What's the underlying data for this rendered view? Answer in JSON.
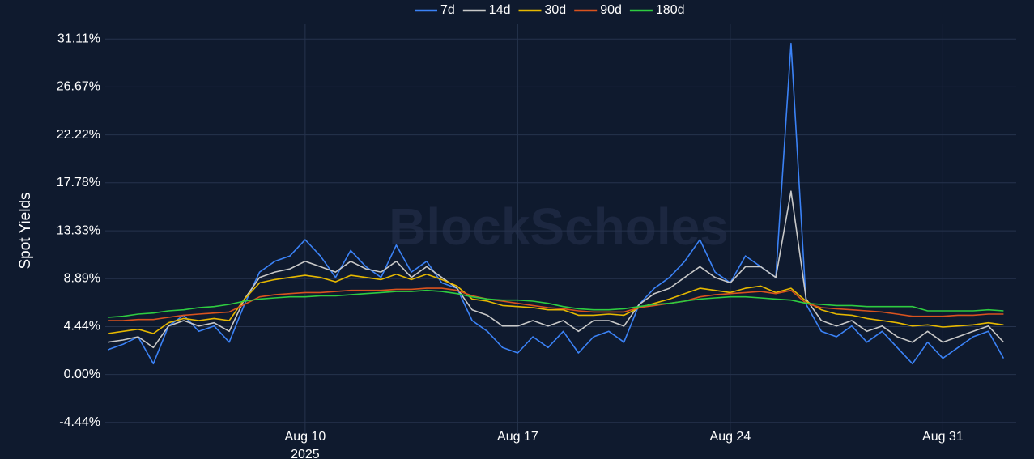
{
  "chart_data": {
    "type": "line",
    "watermark": "BlockScholes",
    "ylabel": "Spot Yields",
    "x_year": "2025",
    "x": [
      "2025-08-03T12:00",
      "2025-08-04T00:00",
      "2025-08-04T12:00",
      "2025-08-05T00:00",
      "2025-08-05T12:00",
      "2025-08-06T00:00",
      "2025-08-06T12:00",
      "2025-08-07T00:00",
      "2025-08-07T12:00",
      "2025-08-08T00:00",
      "2025-08-08T12:00",
      "2025-08-09T00:00",
      "2025-08-09T12:00",
      "2025-08-10T00:00",
      "2025-08-10T12:00",
      "2025-08-11T00:00",
      "2025-08-11T12:00",
      "2025-08-12T00:00",
      "2025-08-12T12:00",
      "2025-08-13T00:00",
      "2025-08-13T12:00",
      "2025-08-14T00:00",
      "2025-08-14T12:00",
      "2025-08-15T00:00",
      "2025-08-15T12:00",
      "2025-08-16T00:00",
      "2025-08-16T12:00",
      "2025-08-17T00:00",
      "2025-08-17T12:00",
      "2025-08-18T00:00",
      "2025-08-18T12:00",
      "2025-08-19T00:00",
      "2025-08-19T12:00",
      "2025-08-20T00:00",
      "2025-08-20T12:00",
      "2025-08-21T00:00",
      "2025-08-21T12:00",
      "2025-08-22T00:00",
      "2025-08-22T12:00",
      "2025-08-23T00:00",
      "2025-08-23T12:00",
      "2025-08-24T00:00",
      "2025-08-24T12:00",
      "2025-08-25T00:00",
      "2025-08-25T12:00",
      "2025-08-26T00:00",
      "2025-08-26T12:00",
      "2025-08-27T00:00",
      "2025-08-27T12:00",
      "2025-08-28T00:00",
      "2025-08-28T12:00",
      "2025-08-29T00:00",
      "2025-08-29T12:00",
      "2025-08-30T00:00",
      "2025-08-30T12:00",
      "2025-08-31T00:00",
      "2025-08-31T12:00",
      "2025-09-01T00:00",
      "2025-09-01T12:00",
      "2025-09-02T00:00"
    ],
    "series": [
      {
        "name": "7d",
        "color": "#3b82f6",
        "values": [
          2.3,
          2.8,
          3.5,
          1.0,
          4.5,
          5.5,
          4.0,
          4.5,
          3.0,
          6.5,
          9.5,
          10.5,
          11.0,
          12.5,
          11.0,
          9.0,
          11.5,
          10.0,
          9.0,
          12.0,
          9.5,
          10.5,
          8.5,
          8.0,
          5.0,
          4.0,
          2.5,
          2.0,
          3.5,
          2.5,
          4.0,
          2.0,
          3.5,
          4.0,
          3.0,
          6.5,
          8.0,
          9.0,
          10.5,
          12.5,
          9.5,
          8.5,
          11.0,
          10.0,
          9.0,
          30.7,
          6.5,
          4.0,
          3.5,
          4.5,
          3.0,
          4.0,
          2.5,
          1.0,
          3.0,
          1.5,
          2.5,
          3.5,
          4.0,
          1.5
        ]
      },
      {
        "name": "14d",
        "color": "#c8c8c8",
        "values": [
          3.0,
          3.2,
          3.5,
          2.5,
          4.5,
          5.0,
          4.5,
          4.8,
          4.0,
          7.0,
          9.0,
          9.5,
          9.8,
          10.5,
          10.0,
          9.5,
          10.5,
          9.8,
          9.5,
          10.5,
          9.0,
          10.0,
          9.0,
          8.0,
          6.0,
          5.5,
          4.5,
          4.5,
          5.0,
          4.5,
          5.0,
          4.0,
          5.0,
          5.0,
          4.5,
          6.5,
          7.5,
          8.0,
          9.0,
          10.0,
          9.0,
          8.5,
          10.0,
          10.0,
          9.0,
          17.0,
          7.0,
          5.0,
          4.5,
          5.0,
          4.0,
          4.5,
          3.5,
          3.0,
          4.0,
          3.0,
          3.5,
          4.0,
          4.5,
          3.0
        ]
      },
      {
        "name": "30d",
        "color": "#e6b800",
        "values": [
          3.8,
          4.0,
          4.2,
          3.8,
          4.8,
          5.2,
          5.0,
          5.2,
          5.0,
          7.0,
          8.5,
          8.8,
          9.0,
          9.2,
          9.0,
          8.6,
          9.2,
          9.0,
          8.8,
          9.3,
          8.8,
          9.3,
          8.8,
          8.2,
          7.0,
          6.8,
          6.4,
          6.3,
          6.2,
          6.0,
          6.0,
          5.5,
          5.5,
          5.6,
          5.5,
          6.2,
          6.6,
          7.0,
          7.5,
          8.0,
          7.8,
          7.6,
          8.0,
          8.2,
          7.6,
          8.0,
          6.8,
          6.0,
          5.6,
          5.5,
          5.2,
          5.0,
          4.8,
          4.5,
          4.6,
          4.4,
          4.5,
          4.6,
          4.8,
          4.6
        ]
      },
      {
        "name": "90d",
        "color": "#d9531e",
        "values": [
          5.0,
          5.0,
          5.1,
          5.1,
          5.3,
          5.5,
          5.6,
          5.7,
          5.8,
          6.5,
          7.2,
          7.4,
          7.5,
          7.6,
          7.6,
          7.7,
          7.8,
          7.8,
          7.8,
          7.9,
          7.9,
          8.0,
          8.0,
          7.8,
          7.3,
          7.0,
          6.8,
          6.6,
          6.4,
          6.2,
          6.1,
          5.9,
          5.8,
          5.8,
          5.8,
          6.2,
          6.4,
          6.6,
          6.8,
          7.2,
          7.4,
          7.5,
          7.6,
          7.7,
          7.5,
          7.8,
          6.6,
          6.2,
          6.1,
          6.0,
          5.9,
          5.8,
          5.6,
          5.4,
          5.4,
          5.4,
          5.5,
          5.5,
          5.6,
          5.6
        ]
      },
      {
        "name": "180d",
        "color": "#2ecc40",
        "values": [
          5.3,
          5.4,
          5.6,
          5.7,
          5.9,
          6.0,
          6.2,
          6.3,
          6.5,
          6.8,
          7.0,
          7.1,
          7.2,
          7.2,
          7.3,
          7.3,
          7.4,
          7.5,
          7.6,
          7.7,
          7.7,
          7.8,
          7.7,
          7.5,
          7.2,
          7.0,
          6.9,
          6.9,
          6.8,
          6.6,
          6.3,
          6.1,
          6.0,
          6.0,
          6.1,
          6.3,
          6.5,
          6.6,
          6.8,
          7.0,
          7.1,
          7.2,
          7.2,
          7.1,
          7.0,
          6.9,
          6.6,
          6.5,
          6.4,
          6.4,
          6.3,
          6.3,
          6.3,
          6.3,
          5.9,
          5.9,
          5.9,
          5.9,
          6.0,
          5.9
        ]
      }
    ],
    "xlim": [
      "2025-08-03T10:00",
      "2025-09-02T10:00"
    ],
    "xticks": [
      {
        "value": "2025-08-10T00:00",
        "label": "Aug 10"
      },
      {
        "value": "2025-08-17T00:00",
        "label": "Aug 17"
      },
      {
        "value": "2025-08-24T00:00",
        "label": "Aug 24"
      },
      {
        "value": "2025-08-31T00:00",
        "label": "Aug 31"
      }
    ],
    "ylim": [
      -5.81,
      32.48
    ],
    "yticks": [
      {
        "value": -4.44,
        "label": "-4.44%"
      },
      {
        "value": 0,
        "label": "0.00%"
      },
      {
        "value": 4.44,
        "label": "4.44%"
      },
      {
        "value": 8.89,
        "label": "8.89%"
      },
      {
        "value": 13.33,
        "label": "13.33%"
      },
      {
        "value": 17.78,
        "label": "17.78%"
      },
      {
        "value": 22.22,
        "label": "22.22%"
      },
      {
        "value": 26.67,
        "label": "26.67%"
      },
      {
        "value": 31.11,
        "label": "31.11%"
      }
    ],
    "grid": true
  }
}
